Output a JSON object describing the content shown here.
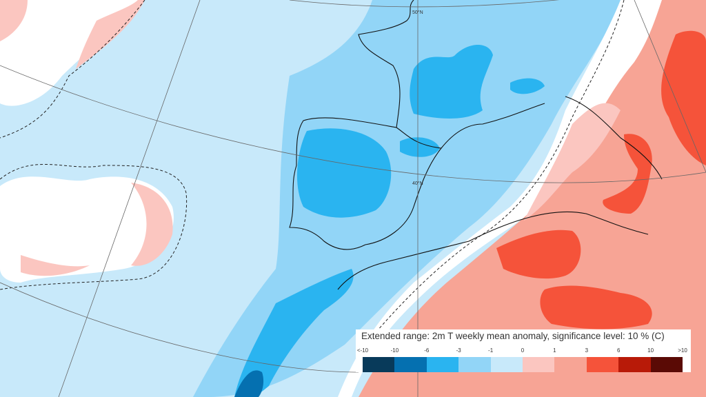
{
  "map": {
    "latitude_labels": [
      "50°N",
      "40°N"
    ],
    "colors": {
      "ocean_base": "#c8e9fa",
      "light_blue": "#92d5f7",
      "cyan": "#2ab4f0",
      "blue": "#0570b0",
      "white": "#ffffff",
      "pale_pink": "#fbc6c0",
      "salmon": "#f7a495",
      "red": "#f5533a"
    }
  },
  "legend": {
    "title": "Extended range: 2m T weekly mean anomaly, significance level: 10 % (C)",
    "ticks": [
      "<-10",
      "-10",
      "-6",
      "-3",
      "-1",
      "0",
      "1",
      "3",
      "6",
      "10",
      ">10"
    ],
    "bins": [
      {
        "range": "<-10 to -10",
        "color": "#083a5a"
      },
      {
        "range": "-10 to -6",
        "color": "#0570b0"
      },
      {
        "range": "-6 to -3",
        "color": "#2ab4f0"
      },
      {
        "range": "-3 to -1",
        "color": "#92d5f7"
      },
      {
        "range": "-1 to 0",
        "color": "#c8e9fa"
      },
      {
        "range": "0 to 1",
        "color": "#fbc6c0"
      },
      {
        "range": "1 to 3",
        "color": "#f7a495"
      },
      {
        "range": "3 to 6",
        "color": "#f5533a"
      },
      {
        "range": "6 to 10",
        "color": "#b81a08"
      },
      {
        "range": "10 to >10",
        "color": "#5a0a05"
      }
    ]
  }
}
